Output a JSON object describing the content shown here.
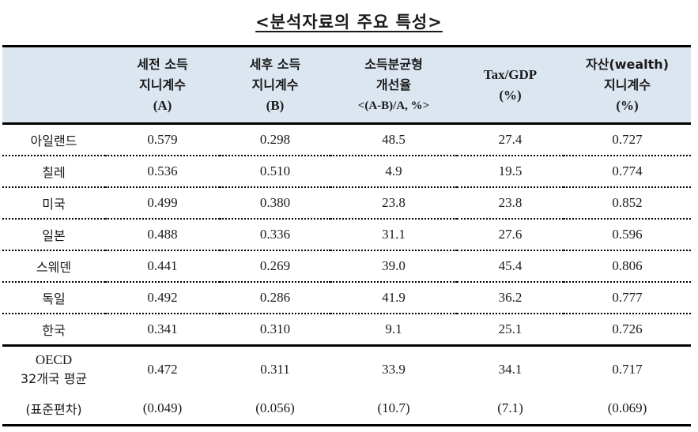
{
  "title": "<분석자료의 주요 특성>",
  "table": {
    "headers": [
      {
        "line1": "",
        "line2": "",
        "line3": ""
      },
      {
        "line1": "세전 소득",
        "line2": "지니계수",
        "line3": "(A)"
      },
      {
        "line1": "세후 소득",
        "line2": "지니계수",
        "line3": "(B)"
      },
      {
        "line1": "소득분균형",
        "line2": "개선율",
        "line3": "<(A-B)/A,  %>"
      },
      {
        "line1": "Tax/GDP",
        "line2": "(%)",
        "line3": ""
      },
      {
        "line1": "자산(wealth)",
        "line2": "지니계수",
        "line3": "(%)"
      }
    ],
    "rows": [
      {
        "name": "아일랜드",
        "a": "0.579",
        "b": "0.298",
        "improve": "48.5",
        "tax": "27.4",
        "wealth": "0.727"
      },
      {
        "name": "칠레",
        "a": "0.536",
        "b": "0.510",
        "improve": "4.9",
        "tax": "19.5",
        "wealth": "0.774"
      },
      {
        "name": "미국",
        "a": "0.499",
        "b": "0.380",
        "improve": "23.8",
        "tax": "23.8",
        "wealth": "0.852"
      },
      {
        "name": "일본",
        "a": "0.488",
        "b": "0.336",
        "improve": "31.1",
        "tax": "27.6",
        "wealth": "0.596"
      },
      {
        "name": "스웨덴",
        "a": "0.441",
        "b": "0.269",
        "improve": "39.0",
        "tax": "45.4",
        "wealth": "0.806"
      },
      {
        "name": "독일",
        "a": "0.492",
        "b": "0.286",
        "improve": "41.9",
        "tax": "36.2",
        "wealth": "0.777"
      },
      {
        "name": "한국",
        "a": "0.341",
        "b": "0.310",
        "improve": "9.1",
        "tax": "25.1",
        "wealth": "0.726"
      }
    ],
    "oecd": {
      "name_line1": "OECD",
      "name_line2": "32개국 평균",
      "a": "0.472",
      "b": "0.311",
      "improve": "33.9",
      "tax": "34.1",
      "wealth": "0.717"
    },
    "std": {
      "name": "(표준편차)",
      "a": "(0.049)",
      "b": "(0.056)",
      "improve": "(10.7)",
      "tax": "(7.1)",
      "wealth": "(0.069)"
    }
  },
  "colors": {
    "header_bg": "#dce6f1",
    "rule": "#000000"
  }
}
